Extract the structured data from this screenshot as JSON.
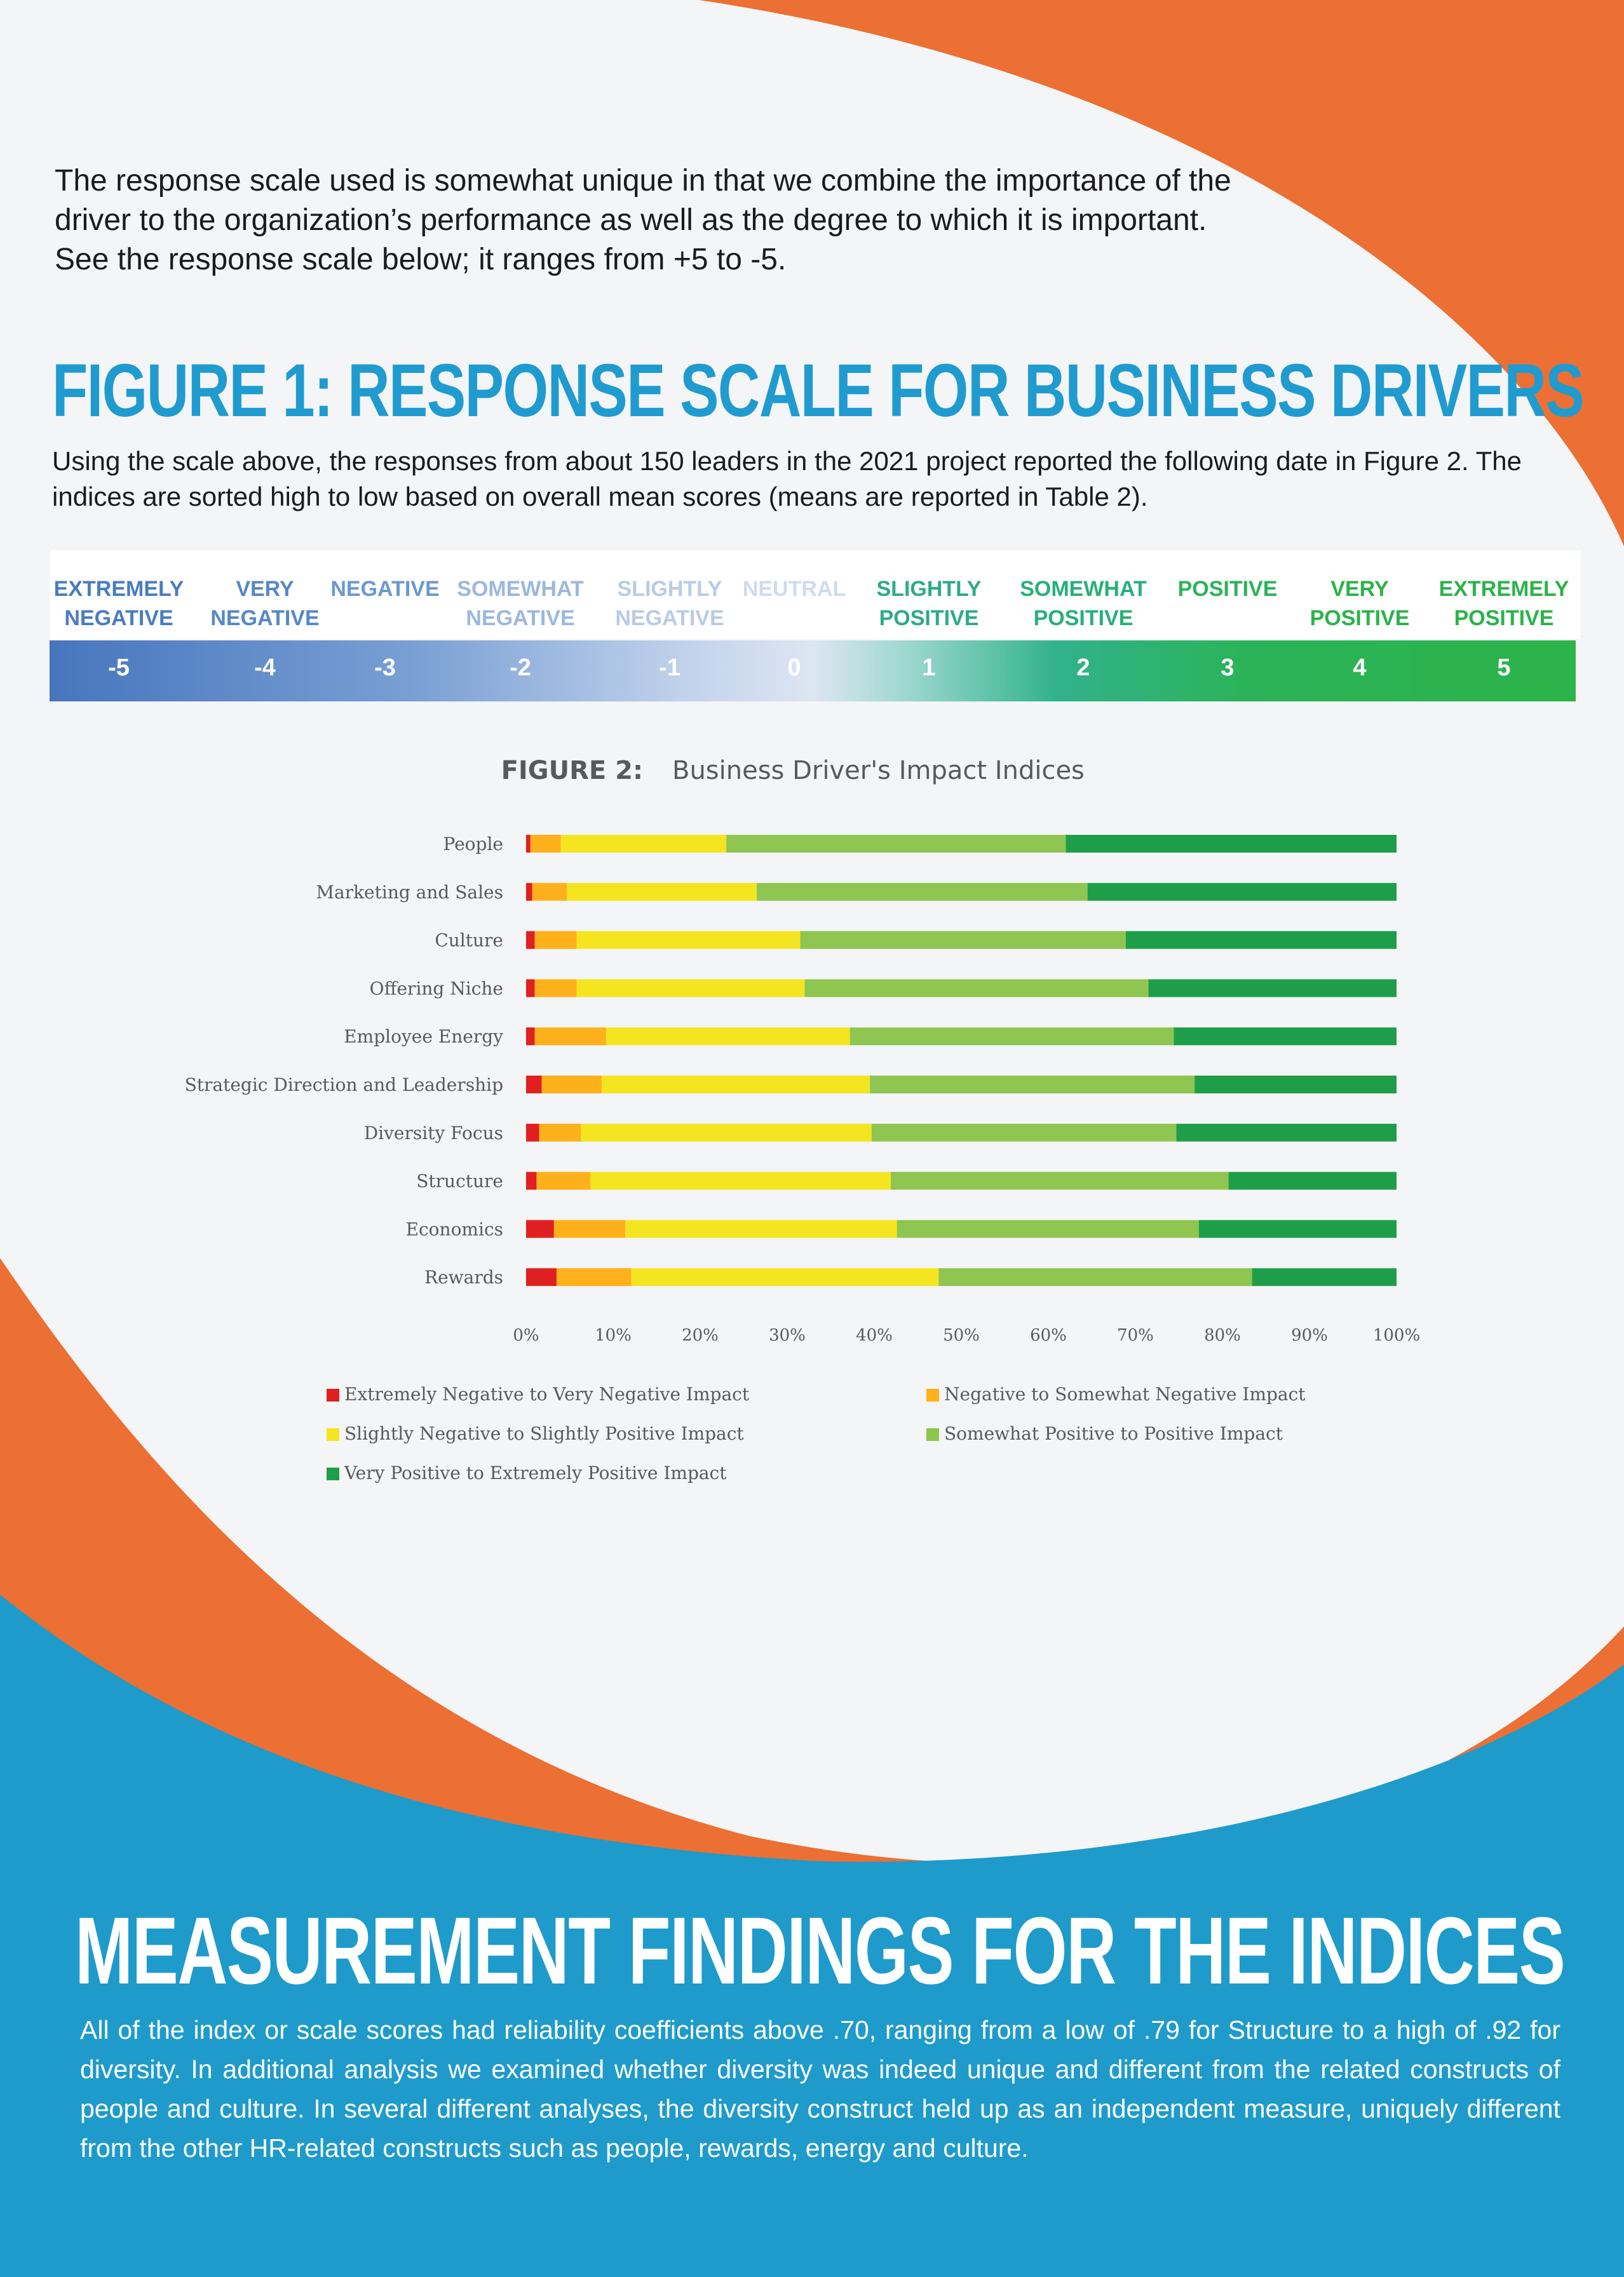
{
  "intro_text": "The response scale used is somewhat unique in that we combine the importance of the driver to the organization’s performance as well as the degree to which it is important. See the response scale below; it ranges from +5 to -5.",
  "figure1": {
    "title": "FIGURE 1: RESPONSE SCALE FOR BUSINESS DRIVERS",
    "description": "Using the scale above, the responses from about 150 leaders in the 2021 project reported the following date in Figure 2. The indices are sorted high to low based on overall mean scores (means are reported in Table 2).",
    "scale": [
      {
        "label": "EXTREMELY NEGATIVE",
        "value": "-5",
        "color": "#4a7cc0"
      },
      {
        "label": "VERY NEGATIVE",
        "value": "-4",
        "color": "#5588c8"
      },
      {
        "label": "NEGATIVE",
        "value": "-3",
        "color": "#6b98cf"
      },
      {
        "label": "SOMEWHAT NEGATIVE",
        "value": "-2",
        "color": "#9bb8df"
      },
      {
        "label": "SLIGHTLY NEGATIVE",
        "value": "-1",
        "color": "#b9cbe6"
      },
      {
        "label": "NEUTRAL",
        "value": "0",
        "color": "#cfdbee"
      },
      {
        "label": "SLIGHTLY POSITIVE",
        "value": "1",
        "color": "#2eaa8a"
      },
      {
        "label": "SOMEWHAT POSITIVE",
        "value": "2",
        "color": "#28b07a"
      },
      {
        "label": "POSITIVE",
        "value": "3",
        "color": "#2bb35a"
      },
      {
        "label": "VERY POSITIVE",
        "value": "4",
        "color": "#2bb34a"
      },
      {
        "label": "EXTREMELY POSITIVE",
        "value": "5",
        "color": "#2bb34a"
      }
    ]
  },
  "chart_data": {
    "type": "bar",
    "orientation": "horizontal",
    "stacked": true,
    "title_prefix": "FIGURE 2:",
    "title": "Business Driver's Impact Indices",
    "xlim": [
      0,
      100
    ],
    "x_ticks": [
      "0%",
      "10%",
      "20%",
      "30%",
      "40%",
      "50%",
      "60%",
      "70%",
      "80%",
      "90%",
      "100%"
    ],
    "categories": [
      "People",
      "Marketing and Sales",
      "Culture",
      "Offering Niche",
      "Employee Energy",
      "Strategic Direction and Leadership",
      "Diversity Focus",
      "Structure",
      "Economics",
      "Rewards"
    ],
    "series": [
      {
        "name": "Extremely Negative to Very Negative Impact",
        "color": "#e02020",
        "values": [
          0.5,
          0.7,
          1.0,
          1.0,
          1.0,
          1.8,
          1.5,
          1.2,
          3.2,
          3.5
        ]
      },
      {
        "name": "Negative to Somewhat Negative Impact",
        "color": "#ffb11b",
        "values": [
          3.5,
          4.0,
          4.8,
          4.8,
          8.2,
          6.9,
          4.8,
          6.2,
          8.2,
          8.6
        ]
      },
      {
        "name": "Slightly Negative to Slightly  Positive Impact",
        "color": "#f4e520",
        "values": [
          19.0,
          21.8,
          25.7,
          26.2,
          28.0,
          30.8,
          33.4,
          34.5,
          31.2,
          35.3
        ]
      },
      {
        "name": "Somewhat Positive to Positive Impact",
        "color": "#8fc551",
        "values": [
          39.0,
          38.0,
          37.4,
          39.5,
          37.2,
          37.3,
          35.0,
          38.8,
          34.7,
          36.0
        ]
      },
      {
        "name": "Very Positive to Extremely Positive Impact",
        "color": "#1f9e49",
        "values": [
          38.0,
          35.5,
          31.1,
          28.5,
          25.6,
          23.2,
          25.3,
          19.3,
          22.7,
          16.6
        ]
      }
    ],
    "legend_position": "bottom",
    "grid": false
  },
  "measurement": {
    "title": "MEASUREMENT FINDINGS FOR THE INDICES",
    "body": "All of the index or scale scores had reliability coefficients above .70, ranging from a low of .79 for Structure to a high of .92 for diversity. In additional analysis we examined whether diversity was indeed unique and different from the related constructs of people and culture. In several different analyses, the diversity construct held up as an independent measure, uniquely different from the other HR-related constructs such as people, rewards, energy and culture."
  },
  "colors": {
    "orange": "#ec6f33",
    "blue": "#1e9bcb",
    "title_blue": "#1f9bcf",
    "background": "#f4f5f7"
  }
}
